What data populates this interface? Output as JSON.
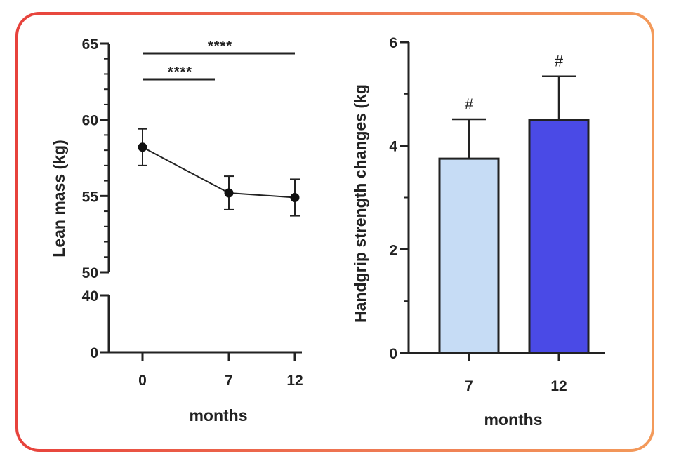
{
  "chart_data": [
    {
      "type": "line",
      "x": [
        "0",
        "7",
        "12"
      ],
      "values": [
        58.2,
        55.2,
        54.9
      ],
      "error": [
        1.2,
        1.1,
        1.2
      ],
      "ylabel": "Lean mass (kg)",
      "xlabel": "months",
      "yticks_lower": [
        "0",
        "40"
      ],
      "yticks_upper": [
        "50",
        "55",
        "60",
        "65"
      ],
      "ylim_upper": [
        50,
        65
      ],
      "ylim_lower": [
        0,
        40
      ],
      "significance": [
        {
          "from": "0",
          "to": "7",
          "label": "****"
        },
        {
          "from": "0",
          "to": "12",
          "label": "****"
        }
      ]
    },
    {
      "type": "bar",
      "categories": [
        "7",
        "12"
      ],
      "values": [
        3.75,
        4.5
      ],
      "error": [
        0.76,
        0.84
      ],
      "colors": [
        "#c6dcf5",
        "#4a4ae6"
      ],
      "annotations": [
        "#",
        "#"
      ],
      "ylabel": "Handgrip strength changes (kg",
      "xlabel": "months",
      "yticks": [
        "0",
        "2",
        "4",
        "6"
      ],
      "ylim": [
        0,
        6
      ]
    }
  ]
}
